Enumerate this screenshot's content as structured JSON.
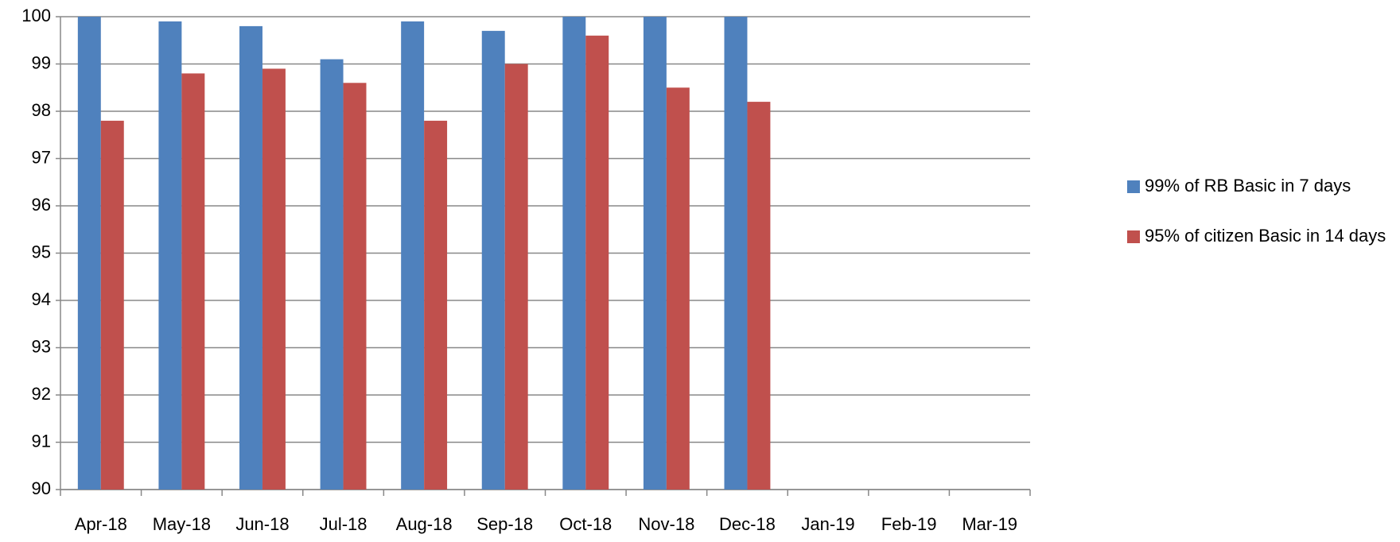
{
  "chart_data": {
    "type": "bar",
    "categories": [
      "Apr-18",
      "May-18",
      "Jun-18",
      "Jul-18",
      "Aug-18",
      "Sep-18",
      "Oct-18",
      "Nov-18",
      "Dec-18",
      "Jan-19",
      "Feb-19",
      "Mar-19"
    ],
    "series": [
      {
        "name": "99% of RB Basic in 7 days",
        "color": "#4f81bd",
        "values": [
          100,
          99.9,
          99.8,
          99.1,
          99.9,
          99.7,
          100,
          100,
          100,
          null,
          null,
          null
        ]
      },
      {
        "name": "95% of citizen Basic in 14 days",
        "color": "#c0504d",
        "values": [
          97.8,
          98.8,
          98.9,
          98.6,
          97.8,
          99.0,
          99.6,
          98.5,
          98.2,
          null,
          null,
          null
        ]
      }
    ],
    "ylim": [
      90,
      100
    ],
    "yticks": [
      90,
      91,
      92,
      93,
      94,
      95,
      96,
      97,
      98,
      99,
      100
    ],
    "grid": true,
    "legend": "right"
  }
}
